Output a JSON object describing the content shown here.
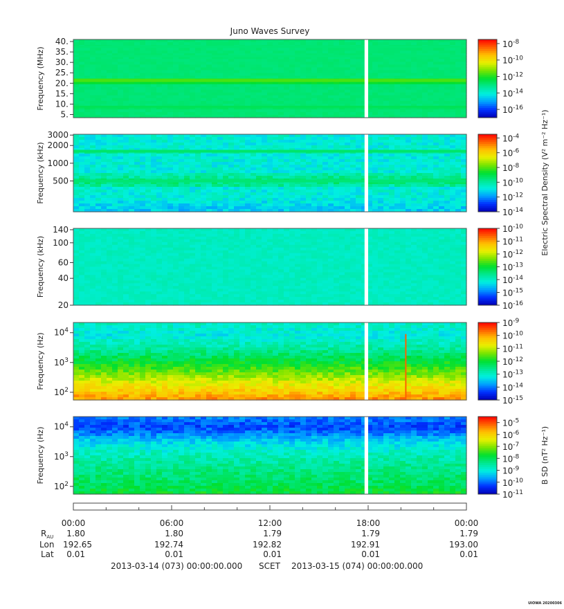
{
  "title": "Juno Waves Survey",
  "gap_range_hours": [
    17.78,
    18.0
  ],
  "colors": {
    "gap": "#ffffff",
    "frame": "#555555",
    "colormap": [
      "#0000b4",
      "#0030ff",
      "#00a0ff",
      "#00f0e0",
      "#00e890",
      "#00e030",
      "#78e400",
      "#e8f000",
      "#ffc000",
      "#ff6000",
      "#ff0000"
    ]
  },
  "chart_data": [
    {
      "type": "heatmap",
      "ylabel": "Frequency (MHz)",
      "yscale": "linear",
      "ylim": [
        3.5,
        41
      ],
      "yticks": [
        {
          "v": 5,
          "label": "5."
        },
        {
          "v": 10,
          "label": "10."
        },
        {
          "v": 15,
          "label": "15."
        },
        {
          "v": 20,
          "label": "20."
        },
        {
          "v": 25,
          "label": "25."
        },
        {
          "v": 30,
          "label": "30."
        },
        {
          "v": 35,
          "label": "35."
        },
        {
          "v": 40,
          "label": "40."
        }
      ],
      "colorbar": {
        "scale": "log",
        "range_exp": [
          -17,
          -7.5
        ],
        "ticks": [
          {
            "base": "10",
            "exp": "-8",
            "e": -8
          },
          {
            "base": "10",
            "exp": "-10",
            "e": -10
          },
          {
            "base": "10",
            "exp": "-12",
            "e": -12
          },
          {
            "base": "10",
            "exp": "-14",
            "e": -14
          },
          {
            "base": "10",
            "exp": "-16",
            "e": -16
          }
        ],
        "label": ""
      },
      "bands": [
        {
          "y": 21.3,
          "level": 0.56,
          "width": 1.4
        },
        {
          "y": 8.7,
          "level": 0.46,
          "width": 0.8
        },
        {
          "y": 33.0,
          "level": 0.43,
          "width": 0.5
        },
        {
          "y": 37.5,
          "level": 0.43,
          "width": 0.5
        }
      ],
      "base_level": 0.43,
      "noise": 0.01,
      "time_events": []
    },
    {
      "type": "heatmap",
      "ylabel": "Frequency (kHz)",
      "yscale": "log",
      "ylim": [
        150,
        3100
      ],
      "yticks": [
        {
          "v": 500,
          "label": "500"
        },
        {
          "v": 1000,
          "label": "1000"
        },
        {
          "v": 2000,
          "label": "2000"
        },
        {
          "v": 3000,
          "label": "3000"
        }
      ],
      "colorbar": {
        "scale": "log",
        "range_exp": [
          -14,
          -3.5
        ],
        "ticks": [
          {
            "base": "10",
            "exp": "-4",
            "e": -4
          },
          {
            "base": "10",
            "exp": "-6",
            "e": -6
          },
          {
            "base": "10",
            "exp": "-8",
            "e": -8
          },
          {
            "base": "10",
            "exp": "-10",
            "e": -10
          },
          {
            "base": "10",
            "exp": "-12",
            "e": -12
          },
          {
            "base": "10",
            "exp": "-14",
            "e": -14
          }
        ],
        "label": ""
      },
      "bands": [
        {
          "y": 1600,
          "level": 0.44,
          "width": 0.02
        },
        {
          "y": 500,
          "level": 0.43,
          "width": 0.12
        }
      ],
      "base_level": 0.31,
      "noise": 0.05,
      "low_gradient": {
        "below": 260,
        "level": 0.24
      },
      "time_events": []
    },
    {
      "type": "heatmap",
      "ylabel": "Frequency (kHz)",
      "yscale": "log",
      "ylim": [
        20,
        145
      ],
      "yticks": [
        {
          "v": 20,
          "label": "20"
        },
        {
          "v": 40,
          "label": "40"
        },
        {
          "v": 60,
          "label": "60"
        },
        {
          "v": 100,
          "label": "100"
        },
        {
          "v": 140,
          "label": "140"
        }
      ],
      "colorbar": {
        "scale": "log",
        "range_exp": [
          -16,
          -10
        ],
        "ticks": [
          {
            "base": "10",
            "exp": "-10",
            "e": -10
          },
          {
            "base": "10",
            "exp": "-11",
            "e": -11
          },
          {
            "base": "10",
            "exp": "-12",
            "e": -12
          },
          {
            "base": "10",
            "exp": "-13",
            "e": -13
          },
          {
            "base": "10",
            "exp": "-14",
            "e": -14
          },
          {
            "base": "10",
            "exp": "-15",
            "e": -15
          },
          {
            "base": "10",
            "exp": "-16",
            "e": -16
          }
        ],
        "label": "Electric Spectral Density (V² m⁻² Hz⁻¹)"
      },
      "bands": [],
      "base_level": 0.34,
      "noise": 0.02,
      "time_events": []
    },
    {
      "type": "heatmap",
      "ylabel": "Frequency (Hz)",
      "yscale": "log",
      "ylim": [
        55,
        22000
      ],
      "yticks": [
        {
          "v": 100,
          "label": "10",
          "sup": "2"
        },
        {
          "v": 1000,
          "label": "10",
          "sup": "3"
        },
        {
          "v": 10000,
          "label": "10",
          "sup": "4"
        }
      ],
      "colorbar": {
        "scale": "log",
        "range_exp": [
          -15,
          -9
        ],
        "ticks": [
          {
            "base": "10",
            "exp": "-9",
            "e": -9
          },
          {
            "base": "10",
            "exp": "-10",
            "e": -10
          },
          {
            "base": "10",
            "exp": "-11",
            "e": -11
          },
          {
            "base": "10",
            "exp": "-12",
            "e": -12
          },
          {
            "base": "10",
            "exp": "-13",
            "e": -13
          },
          {
            "base": "10",
            "exp": "-14",
            "e": -14
          },
          {
            "base": "10",
            "exp": "-15",
            "e": -15
          }
        ],
        "label": ""
      },
      "profile": [
        [
          55,
          0.86
        ],
        [
          100,
          0.78
        ],
        [
          200,
          0.7
        ],
        [
          500,
          0.58
        ],
        [
          1000,
          0.5
        ],
        [
          3000,
          0.38
        ],
        [
          8000,
          0.3
        ],
        [
          22000,
          0.34
        ]
      ],
      "noise": 0.05,
      "time_events": [
        {
          "hour": 20.3,
          "level": 0.9,
          "fmax": 9000
        }
      ]
    },
    {
      "type": "heatmap",
      "ylabel": "Frequency (Hz)",
      "yscale": "log",
      "ylim": [
        55,
        22000
      ],
      "yticks": [
        {
          "v": 100,
          "label": "10",
          "sup": "2"
        },
        {
          "v": 1000,
          "label": "10",
          "sup": "3"
        },
        {
          "v": 10000,
          "label": "10",
          "sup": "4"
        }
      ],
      "colorbar": {
        "scale": "log",
        "range_exp": [
          -11,
          -4.5
        ],
        "ticks": [
          {
            "base": "10",
            "exp": "-5",
            "e": -5
          },
          {
            "base": "10",
            "exp": "-6",
            "e": -6
          },
          {
            "base": "10",
            "exp": "-7",
            "e": -7
          },
          {
            "base": "10",
            "exp": "-8",
            "e": -8
          },
          {
            "base": "10",
            "exp": "-9",
            "e": -9
          },
          {
            "base": "10",
            "exp": "-10",
            "e": -10
          },
          {
            "base": "10",
            "exp": "-11",
            "e": -11
          }
        ],
        "label": "B SD (nT² Hz⁻¹)"
      },
      "profile": [
        [
          55,
          0.5
        ],
        [
          100,
          0.46
        ],
        [
          300,
          0.42
        ],
        [
          1000,
          0.36
        ],
        [
          3000,
          0.27
        ],
        [
          6000,
          0.17
        ],
        [
          10000,
          0.12
        ],
        [
          22000,
          0.18
        ]
      ],
      "noise": 0.05,
      "time_events": []
    }
  ],
  "time_axis": {
    "range_hours": [
      0,
      24
    ],
    "ticks": [
      {
        "h": 0,
        "label": "00:00",
        "r": "1.80",
        "lon": "192.65",
        "lat": "0.01"
      },
      {
        "h": 6,
        "label": "06:00",
        "r": "1.80",
        "lon": "192.74",
        "lat": "0.01"
      },
      {
        "h": 12,
        "label": "12:00",
        "r": "1.79",
        "lon": "192.82",
        "lat": "0.01"
      },
      {
        "h": 18,
        "label": "18:00",
        "r": "1.79",
        "lon": "192.91",
        "lat": "0.01"
      },
      {
        "h": 24,
        "label": "00:00",
        "r": "1.79",
        "lon": "193.00",
        "lat": "0.01"
      }
    ],
    "minor_step_hours": 2,
    "row_labels": {
      "r": "R",
      "r_sub": "AU",
      "lon": "Lon",
      "lat": "Lat"
    }
  },
  "footer": {
    "start": "2013-03-14 (073) 00:00:00.000",
    "mid": "SCET",
    "end": "2013-03-15 (074) 00:00:00.000"
  },
  "corner_stamp": "UIOWA 20200306"
}
